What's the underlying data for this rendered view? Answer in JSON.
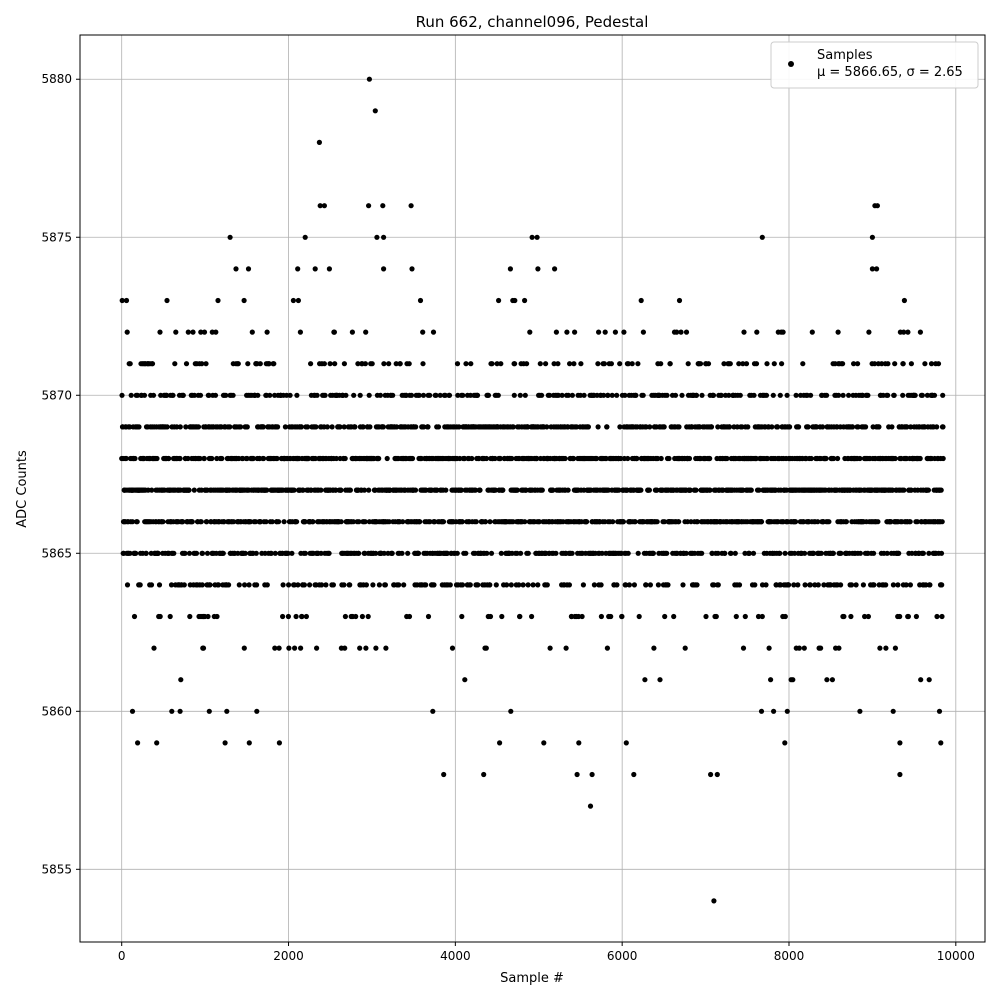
{
  "chart_data": {
    "type": "scatter",
    "title": "Run 662, channel096, Pedestal",
    "xlabel": "Sample #",
    "ylabel": "ADC Counts",
    "xlim": [
      -500,
      10350
    ],
    "ylim": [
      5852.7,
      5881.4
    ],
    "xticks": [
      0,
      2000,
      4000,
      6000,
      8000,
      10000
    ],
    "yticks": [
      5855,
      5860,
      5865,
      5870,
      5875,
      5880
    ],
    "xtick_labels": [
      "0",
      "2000",
      "4000",
      "6000",
      "8000",
      "10000"
    ],
    "ytick_labels": [
      "5855",
      "5860",
      "5865",
      "5870",
      "5875",
      "5880"
    ],
    "grid": true,
    "legend_position": "top-right",
    "marker_color": "#000000",
    "legend": {
      "label": "Samples",
      "stats": "μ = 5866.65, σ = 2.65"
    },
    "mu": 5866.65,
    "sigma": 2.65,
    "n_samples": 9850,
    "series": [
      {
        "values_note": "dense band of integer ADC values 5863-5870 across all samples",
        "outliers": [
          {
            "x": 2970,
            "y": 5880
          },
          {
            "x": 3040,
            "y": 5879
          },
          {
            "x": 2370,
            "y": 5878
          },
          {
            "x": 2380,
            "y": 5876
          },
          {
            "x": 2430,
            "y": 5876
          },
          {
            "x": 2960,
            "y": 5876
          },
          {
            "x": 3130,
            "y": 5876
          },
          {
            "x": 3470,
            "y": 5876
          },
          {
            "x": 9030,
            "y": 5876
          },
          {
            "x": 9060,
            "y": 5876
          },
          {
            "x": 1300,
            "y": 5875
          },
          {
            "x": 2200,
            "y": 5875
          },
          {
            "x": 3060,
            "y": 5875
          },
          {
            "x": 3140,
            "y": 5875
          },
          {
            "x": 4920,
            "y": 5875
          },
          {
            "x": 4980,
            "y": 5875
          },
          {
            "x": 7680,
            "y": 5875
          },
          {
            "x": 9000,
            "y": 5875
          },
          {
            "x": 1370,
            "y": 5874
          },
          {
            "x": 1520,
            "y": 5874
          },
          {
            "x": 2110,
            "y": 5874
          },
          {
            "x": 2320,
            "y": 5874
          },
          {
            "x": 2490,
            "y": 5874
          },
          {
            "x": 3140,
            "y": 5874
          },
          {
            "x": 3480,
            "y": 5874
          },
          {
            "x": 4660,
            "y": 5874
          },
          {
            "x": 4990,
            "y": 5874
          },
          {
            "x": 5190,
            "y": 5874
          },
          {
            "x": 9000,
            "y": 5874
          },
          {
            "x": 9050,
            "y": 5874
          },
          {
            "x": 130,
            "y": 5860
          },
          {
            "x": 600,
            "y": 5860
          },
          {
            "x": 700,
            "y": 5860
          },
          {
            "x": 1050,
            "y": 5860
          },
          {
            "x": 1260,
            "y": 5860
          },
          {
            "x": 1620,
            "y": 5860
          },
          {
            "x": 3730,
            "y": 5860
          },
          {
            "x": 7670,
            "y": 5860
          },
          {
            "x": 7980,
            "y": 5860
          },
          {
            "x": 8850,
            "y": 5860
          },
          {
            "x": 9250,
            "y": 5860
          },
          {
            "x": 190,
            "y": 5859
          },
          {
            "x": 420,
            "y": 5859
          },
          {
            "x": 1240,
            "y": 5859
          },
          {
            "x": 1530,
            "y": 5859
          },
          {
            "x": 1890,
            "y": 5859
          },
          {
            "x": 4530,
            "y": 5859
          },
          {
            "x": 5060,
            "y": 5859
          },
          {
            "x": 5480,
            "y": 5859
          },
          {
            "x": 6050,
            "y": 5859
          },
          {
            "x": 7950,
            "y": 5859
          },
          {
            "x": 9330,
            "y": 5859
          },
          {
            "x": 9820,
            "y": 5859
          },
          {
            "x": 3860,
            "y": 5858
          },
          {
            "x": 4340,
            "y": 5858
          },
          {
            "x": 5460,
            "y": 5858
          },
          {
            "x": 5640,
            "y": 5858
          },
          {
            "x": 6140,
            "y": 5858
          },
          {
            "x": 7060,
            "y": 5858
          },
          {
            "x": 7140,
            "y": 5858
          },
          {
            "x": 9330,
            "y": 5858
          },
          {
            "x": 5620,
            "y": 5857
          },
          {
            "x": 7100,
            "y": 5854
          }
        ]
      }
    ]
  }
}
